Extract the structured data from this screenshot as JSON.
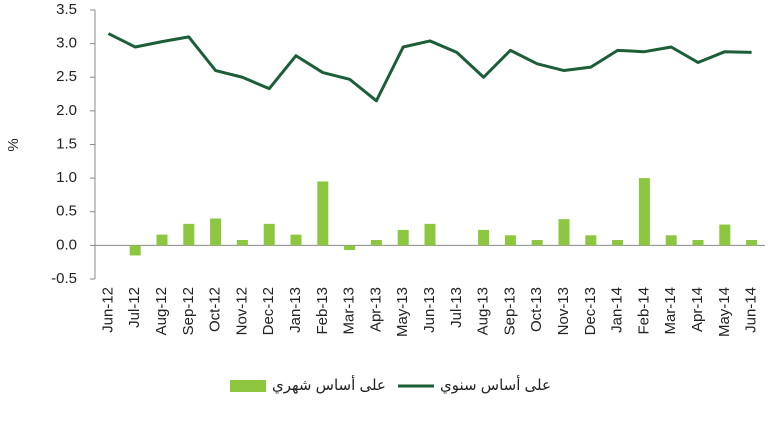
{
  "chart_data": {
    "type": "combo",
    "y_label": "%",
    "categories": [
      "Jun-12",
      "Jul-12",
      "Aug-12",
      "Sep-12",
      "Oct-12",
      "Nov-12",
      "Dec-12",
      "Jan-13",
      "Feb-13",
      "Mar-13",
      "Apr-13",
      "May-13",
      "Jun-13",
      "Jul-13",
      "Aug-13",
      "Sep-13",
      "Oct-13",
      "Nov-13",
      "Dec-13",
      "Jan-14",
      "Feb-14",
      "Mar-14",
      "Apr-14",
      "May-14",
      "Jun-14"
    ],
    "series": [
      {
        "name": "على أساس شهري",
        "type": "bar",
        "color": "#8dc63f",
        "values": [
          0,
          -0.15,
          0.16,
          0.32,
          0.4,
          0.08,
          0.32,
          0.16,
          0.95,
          -0.07,
          0.08,
          0.23,
          0.32,
          0,
          0.23,
          0.15,
          0.08,
          0.39,
          0.15,
          0.08,
          1.0,
          0.15,
          0.08,
          0.31,
          0.08
        ]
      },
      {
        "name": "على أساس سنوي",
        "type": "line",
        "color": "#1b5e37",
        "values": [
          3.15,
          2.95,
          3.03,
          3.1,
          2.6,
          2.5,
          2.33,
          2.82,
          2.57,
          2.47,
          2.15,
          2.95,
          3.04,
          2.87,
          2.5,
          2.9,
          2.7,
          2.6,
          2.65,
          2.9,
          2.88,
          2.95,
          2.72,
          2.88,
          2.87
        ]
      }
    ],
    "ylim": [
      -0.5,
      3.5
    ],
    "yticks": [
      -0.5,
      {
        "value": 0,
        "label": "0.0"
      },
      0.5,
      {
        "value": 1,
        "label": "1.0"
      },
      1.5,
      {
        "value": 2,
        "label": "2.0"
      },
      2.5,
      {
        "value": 3,
        "label": "3.0"
      },
      3.5
    ],
    "legend": "bottom"
  }
}
